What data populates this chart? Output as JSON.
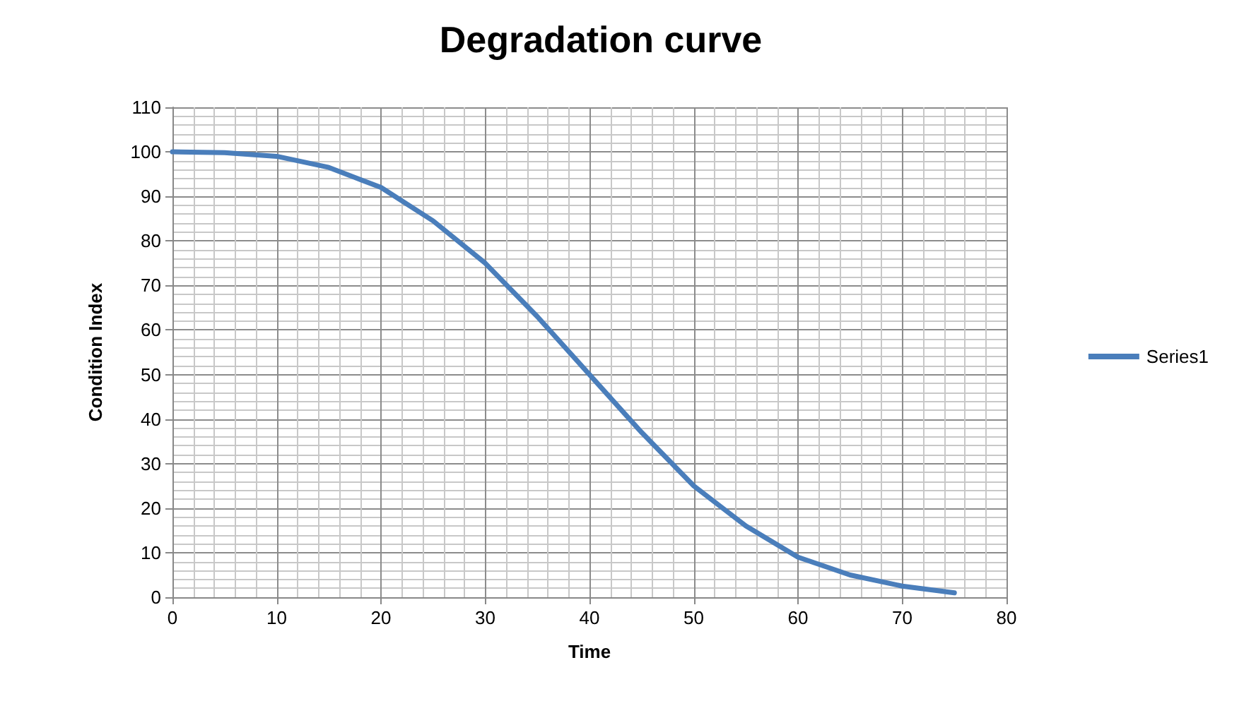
{
  "chart_data": {
    "type": "line",
    "title": "Degradation curve",
    "xlabel": "Time",
    "ylabel": "Condition Index",
    "x": [
      0,
      5,
      10,
      15,
      20,
      25,
      30,
      35,
      40,
      45,
      50,
      55,
      60,
      65,
      70,
      75
    ],
    "series": [
      {
        "name": "Series1",
        "color": "#4a7ebb",
        "values": [
          100,
          99.8,
          99,
          96.5,
          92,
          84.5,
          75,
          63,
          50,
          37,
          25,
          16,
          9,
          5,
          2.5,
          1
        ]
      }
    ],
    "xlim": [
      0,
      80
    ],
    "xticks": [
      0,
      10,
      20,
      30,
      40,
      50,
      60,
      70,
      80
    ],
    "ylim": [
      0,
      110
    ],
    "yticks": [
      0,
      10,
      20,
      30,
      40,
      50,
      60,
      70,
      80,
      90,
      100,
      110
    ],
    "grid": true,
    "legend": "right",
    "marker": "none",
    "line_style": "solid"
  }
}
